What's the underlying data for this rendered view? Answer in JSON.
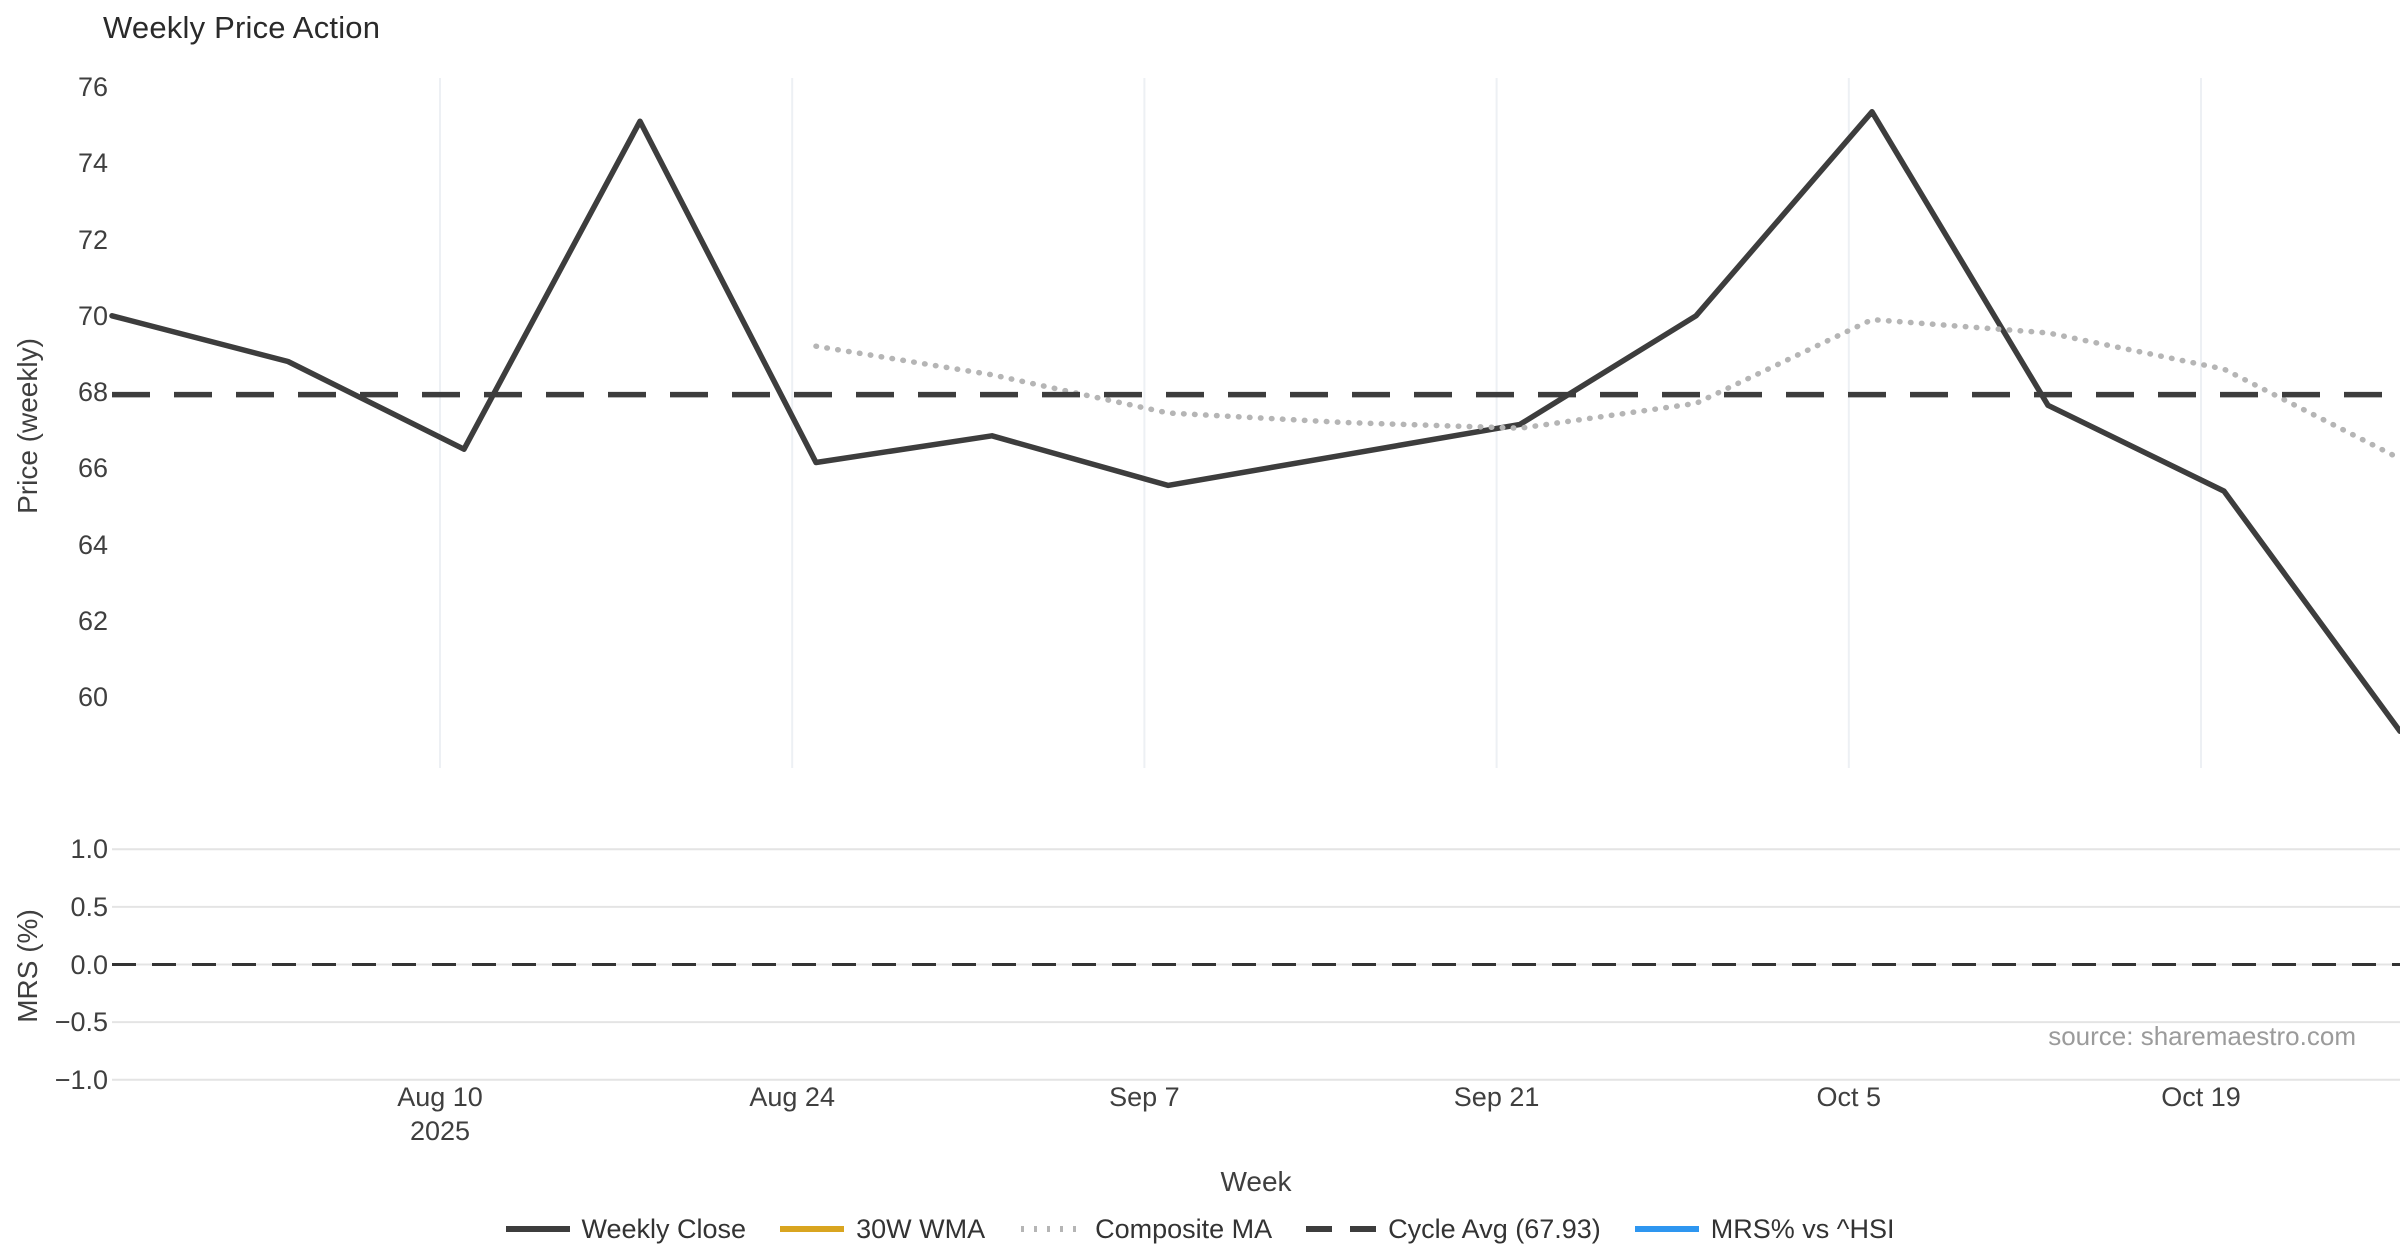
{
  "title": "Weekly Price Action",
  "source_note": "source: sharemaestro.com",
  "axes": {
    "price": {
      "label": "Price (weekly)"
    },
    "mrs": {
      "label": "MRS (%)"
    },
    "x": {
      "label": "Week",
      "year_label": "2025"
    }
  },
  "legend": {
    "items": [
      {
        "label": "Weekly Close",
        "color": "#3d3d3d",
        "style": "solid"
      },
      {
        "label": "30W WMA",
        "color": "#d9a520",
        "style": "solid"
      },
      {
        "label": "Composite MA",
        "color": "#b5b5b5",
        "style": "dotted"
      },
      {
        "label": "Cycle Avg (67.93)",
        "color": "#3d3d3d",
        "style": "dashed"
      },
      {
        "label": "MRS% vs ^HSI",
        "color": "#2e96f0",
        "style": "solid"
      }
    ]
  },
  "chart_data": [
    {
      "type": "line",
      "panel": "price",
      "title": "Weekly Price Action",
      "xlabel": "Week",
      "ylabel": "Price (weekly)",
      "categories": [
        "Jul 28",
        "Aug 4",
        "Aug 11",
        "Aug 18",
        "Aug 25",
        "Sep 1",
        "Sep 8",
        "Sep 15",
        "Sep 22",
        "Sep 29",
        "Oct 6",
        "Oct 13",
        "Oct 20",
        "Oct 27"
      ],
      "x_tick_labels": [
        "Aug 10",
        "Aug 24",
        "Sep 7",
        "Sep 21",
        "Oct 5",
        "Oct 19"
      ],
      "x_tick_year": "2025",
      "y_ticks": [
        76,
        74,
        72,
        70,
        68,
        66,
        64,
        62,
        60
      ],
      "ylim": [
        58.1,
        76.3
      ],
      "grid": "vertical-only",
      "legend_position": "bottom-center",
      "series": [
        {
          "name": "Weekly Close",
          "color": "#3d3d3d",
          "style": "solid",
          "values": [
            70.0,
            68.8,
            66.5,
            75.1,
            66.15,
            66.85,
            65.55,
            66.35,
            67.15,
            70.0,
            75.35,
            67.65,
            65.4,
            59.1
          ]
        },
        {
          "name": "30W WMA",
          "color": "#d9a520",
          "style": "solid",
          "values": []
        },
        {
          "name": "Composite MA",
          "color": "#b5b5b5",
          "style": "dotted",
          "values": [
            null,
            null,
            null,
            null,
            69.2,
            68.45,
            67.45,
            67.2,
            67.05,
            67.7,
            69.9,
            69.55,
            68.6,
            66.25
          ]
        }
      ],
      "reference_lines": [
        {
          "name": "Cycle Avg",
          "value": 67.93,
          "color": "#3d3d3d",
          "style": "dashed"
        }
      ]
    },
    {
      "type": "line",
      "panel": "mrs",
      "ylabel": "MRS (%)",
      "y_ticks": [
        1.0,
        0.5,
        0.0,
        -0.5,
        -1.0
      ],
      "ylim": [
        -1.15,
        1.15
      ],
      "grid": "horizontal-only",
      "series": [
        {
          "name": "MRS% vs ^HSI",
          "color": "#2e96f0",
          "style": "solid",
          "values": []
        }
      ],
      "reference_lines": [
        {
          "name": "Zero",
          "value": 0.0,
          "color": "#333333",
          "style": "dashed"
        }
      ]
    }
  ]
}
